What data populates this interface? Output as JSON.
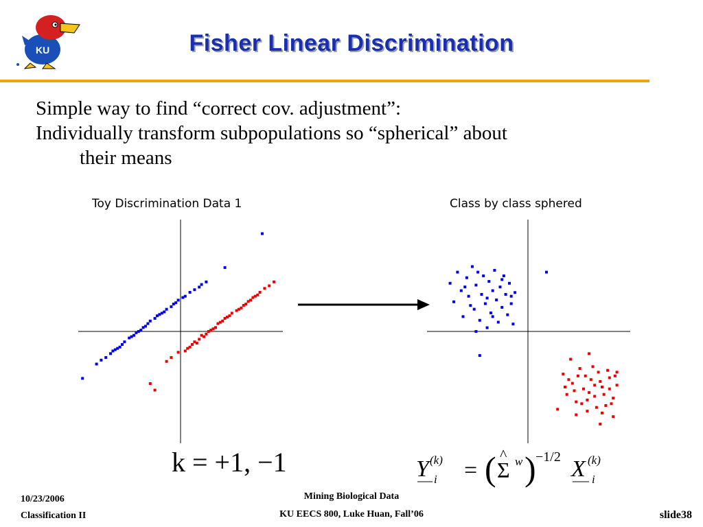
{
  "header": {
    "title": "Fisher Linear Discrimination"
  },
  "body": {
    "line1": "Simple way to find “correct cov. adjustment”:",
    "line2a": "Individually transform subpopulations so “spherical” about",
    "line2b": "their means"
  },
  "figures": {
    "left_title": "Toy Discrimination Data 1",
    "right_title": "Class by class sphered"
  },
  "formulas": {
    "left": "k = +1, −1",
    "right_Y": "Y",
    "right_sup": "(k)",
    "right_sub": "i",
    "right_eq": "=",
    "right_sigma": "Σ",
    "right_hat": "^",
    "right_w": "w",
    "right_exp": "−1/2",
    "right_X": "X"
  },
  "footer": {
    "date": "10/23/2006",
    "section": "Classification II",
    "course1": "Mining Biological Data",
    "course2": "KU EECS 800, Luke Huan, Fall’06",
    "slide": "slide38"
  },
  "colors": {
    "title": "#1a2fb0",
    "accent_rule": "#f0a30a",
    "class_blue": "#0000ee",
    "class_red": "#ee0000"
  },
  "icons": {
    "logo": "jayhawk-ku-logo"
  },
  "chart_data": [
    {
      "type": "scatter",
      "title": "Toy Discrimination Data 1",
      "series": [
        {
          "color": "#0000ee",
          "points": [
            [
              -4.2,
              -3.6
            ],
            [
              -3.6,
              -2.5
            ],
            [
              -3.4,
              -2.2
            ],
            [
              -3.0,
              -1.7
            ],
            [
              -2.8,
              -1.4
            ],
            [
              -2.6,
              -1.2
            ],
            [
              -2.4,
              -0.8
            ],
            [
              -2.0,
              -0.3
            ],
            [
              -1.7,
              0.1
            ],
            [
              -1.4,
              0.6
            ],
            [
              -1.1,
              1.0
            ],
            [
              -0.9,
              1.3
            ],
            [
              -0.6,
              1.7
            ],
            [
              -0.3,
              2.1
            ],
            [
              0.1,
              2.6
            ],
            [
              0.4,
              3.0
            ],
            [
              0.8,
              3.4
            ],
            [
              1.1,
              3.8
            ],
            [
              -2.9,
              -1.5
            ],
            [
              -2.2,
              -0.5
            ],
            [
              -1.6,
              0.3
            ],
            [
              -1.0,
              1.2
            ],
            [
              -0.4,
              1.9
            ],
            [
              0.2,
              2.7
            ],
            [
              0.6,
              3.2
            ],
            [
              -2.5,
              -1.0
            ],
            [
              -1.9,
              -0.1
            ],
            [
              -1.3,
              0.8
            ],
            [
              -0.7,
              1.5
            ],
            [
              -0.1,
              2.4
            ],
            [
              0.9,
              3.6
            ],
            [
              -3.2,
              -2.0
            ],
            [
              -2.1,
              -0.4
            ],
            [
              -1.5,
              0.4
            ],
            [
              -0.8,
              1.4
            ],
            [
              1.9,
              4.9
            ],
            [
              3.5,
              7.5
            ],
            [
              -2.7,
              -1.3
            ],
            [
              -1.8,
              0.0
            ],
            [
              -0.2,
              2.2
            ]
          ]
        },
        {
          "color": "#ee0000",
          "points": [
            [
              -1.3,
              -4.0
            ],
            [
              -1.1,
              -4.5
            ],
            [
              -0.4,
              -2.0
            ],
            [
              -0.1,
              -1.6
            ],
            [
              0.3,
              -1.3
            ],
            [
              0.6,
              -0.8
            ],
            [
              0.9,
              -0.3
            ],
            [
              1.3,
              0.1
            ],
            [
              1.6,
              0.6
            ],
            [
              1.9,
              1.0
            ],
            [
              2.2,
              1.4
            ],
            [
              2.6,
              1.8
            ],
            [
              2.9,
              2.3
            ],
            [
              3.3,
              2.8
            ],
            [
              3.6,
              3.3
            ],
            [
              4.0,
              3.8
            ],
            [
              0.4,
              -1.2
            ],
            [
              0.8,
              -0.6
            ],
            [
              1.1,
              -0.2
            ],
            [
              1.5,
              0.3
            ],
            [
              1.8,
              0.8
            ],
            [
              2.4,
              1.6
            ],
            [
              2.8,
              2.1
            ],
            [
              3.1,
              2.6
            ],
            [
              3.4,
              3.0
            ],
            [
              0.2,
              -1.5
            ],
            [
              0.7,
              -0.9
            ],
            [
              1.2,
              0.0
            ],
            [
              1.7,
              0.7
            ],
            [
              2.1,
              1.2
            ],
            [
              2.5,
              1.7
            ],
            [
              3.0,
              2.4
            ],
            [
              3.8,
              3.5
            ],
            [
              0.5,
              -1.0
            ],
            [
              1.0,
              -0.4
            ],
            [
              1.4,
              0.2
            ],
            [
              2.0,
              1.1
            ],
            [
              2.7,
              2.0
            ],
            [
              3.2,
              2.7
            ],
            [
              -0.6,
              -2.3
            ]
          ]
        }
      ]
    },
    {
      "type": "scatter",
      "title": "Class by class sphered",
      "series": [
        {
          "color": "#0000ee",
          "points": [
            [
              -4.2,
              2.6
            ],
            [
              -4.0,
              1.6
            ],
            [
              -3.8,
              3.2
            ],
            [
              -3.6,
              2.2
            ],
            [
              -3.5,
              0.8
            ],
            [
              -3.3,
              2.9
            ],
            [
              -3.2,
              1.9
            ],
            [
              -3.0,
              3.5
            ],
            [
              -2.9,
              1.2
            ],
            [
              -2.8,
              2.5
            ],
            [
              -2.6,
              0.6
            ],
            [
              -2.5,
              2.0
            ],
            [
              -2.4,
              3.0
            ],
            [
              -2.3,
              1.5
            ],
            [
              -2.2,
              0.2
            ],
            [
              -2.1,
              2.7
            ],
            [
              -2.0,
              1.0
            ],
            [
              -1.9,
              2.2
            ],
            [
              -1.8,
              3.3
            ],
            [
              -1.7,
              1.7
            ],
            [
              -1.6,
              0.5
            ],
            [
              -1.5,
              2.4
            ],
            [
              -1.4,
              1.3
            ],
            [
              -1.3,
              3.0
            ],
            [
              -1.2,
              2.0
            ],
            [
              -1.1,
              0.9
            ],
            [
              -1.0,
              2.6
            ],
            [
              -0.9,
              1.5
            ],
            [
              -0.8,
              0.4
            ],
            [
              -0.7,
              2.1
            ],
            [
              -3.4,
              2.4
            ],
            [
              -3.1,
              1.4
            ],
            [
              -2.7,
              3.2
            ],
            [
              -2.2,
              1.8
            ],
            [
              -1.9,
              0.8
            ],
            [
              -1.4,
              2.8
            ],
            [
              -0.9,
              1.9
            ],
            [
              -2.6,
              -1.3
            ],
            [
              -2.8,
              0.0
            ],
            [
              1.0,
              3.2
            ]
          ]
        },
        {
          "color": "#ee0000",
          "points": [
            [
              1.6,
              -4.2
            ],
            [
              1.9,
              -2.3
            ],
            [
              2.1,
              -3.4
            ],
            [
              2.4,
              -2.8
            ],
            [
              2.6,
              -3.8
            ],
            [
              2.8,
              -2.0
            ],
            [
              3.0,
              -3.1
            ],
            [
              3.2,
              -4.3
            ],
            [
              3.4,
              -2.6
            ],
            [
              3.6,
              -3.5
            ],
            [
              3.8,
              -2.2
            ],
            [
              4.0,
              -3.0
            ],
            [
              4.2,
              -4.0
            ],
            [
              4.4,
              -2.5
            ],
            [
              4.6,
              -3.6
            ],
            [
              4.8,
              -2.9
            ],
            [
              2.2,
              -2.6
            ],
            [
              2.5,
              -3.2
            ],
            [
              2.9,
              -3.9
            ],
            [
              3.1,
              -2.4
            ],
            [
              3.3,
              -3.3
            ],
            [
              3.5,
              -1.9
            ],
            [
              3.7,
              -4.1
            ],
            [
              3.9,
              -2.7
            ],
            [
              4.1,
              -3.4
            ],
            [
              4.3,
              -2.1
            ],
            [
              4.5,
              -3.9
            ],
            [
              4.7,
              -2.4
            ],
            [
              2.0,
              -3.0
            ],
            [
              2.7,
              -2.4
            ],
            [
              3.2,
              -3.7
            ],
            [
              3.6,
              -2.9
            ],
            [
              4.0,
              -4.4
            ],
            [
              4.4,
              -3.1
            ],
            [
              2.3,
              -1.5
            ],
            [
              3.3,
              -1.2
            ],
            [
              3.9,
              -5.0
            ],
            [
              4.6,
              -4.6
            ],
            [
              4.8,
              -2.2
            ],
            [
              2.6,
              -4.5
            ]
          ]
        }
      ]
    }
  ]
}
